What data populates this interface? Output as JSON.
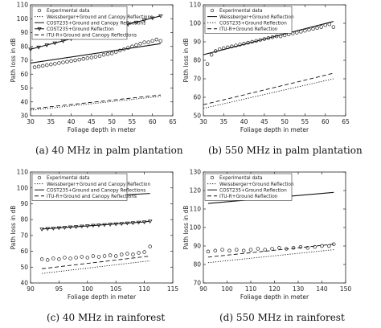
{
  "chart_data": [
    {
      "type": "line",
      "caption": "(a) 40 MHz in palm plantation",
      "xlabel": "Foliage depth in meter",
      "ylabel": "Path loss in dB",
      "xlim": [
        30,
        65
      ],
      "ylim": [
        30,
        110
      ],
      "xticks": [
        30,
        35,
        40,
        45,
        50,
        55,
        60,
        65
      ],
      "yticks": [
        30,
        40,
        50,
        60,
        70,
        80,
        90,
        100,
        110
      ],
      "grid": false,
      "legend_position": "top-left",
      "series": [
        {
          "name": "Experimental data",
          "style": "circles",
          "x": [
            31,
            32,
            33,
            34,
            35,
            36,
            37,
            38,
            39,
            40,
            41,
            42,
            43,
            44,
            45,
            46,
            47,
            48,
            49,
            50,
            51,
            52,
            53,
            54,
            55,
            56,
            57,
            58,
            59,
            60,
            61,
            62
          ],
          "y": [
            65,
            65.5,
            66,
            66.5,
            67,
            67.5,
            68,
            68.5,
            69,
            69.5,
            70,
            70.5,
            71,
            71.5,
            72,
            72.5,
            73,
            74,
            74.5,
            75,
            76,
            77,
            78,
            79,
            80,
            81,
            82,
            83,
            83,
            84,
            85,
            84
          ]
        },
        {
          "name": "Weissberger+Ground and Canopy Reflections",
          "style": "dotted",
          "x": [
            30,
            62
          ],
          "y": [
            34,
            44
          ]
        },
        {
          "name": "COST235+Ground and Canopy Reflections",
          "style": "solid",
          "x": [
            30,
            62
          ],
          "y": [
            68,
            82
          ]
        },
        {
          "name": "COST235+Ground Reflection",
          "style": "solid-triangles",
          "x": [
            30,
            32,
            34,
            36,
            38,
            40,
            42,
            44,
            46,
            48,
            50,
            52,
            54,
            56,
            58,
            60,
            62
          ],
          "y": [
            78,
            79.5,
            81,
            82.5,
            84,
            85.5,
            87,
            88.5,
            90,
            91.5,
            93,
            94.5,
            96,
            97.5,
            99,
            100.5,
            102
          ]
        },
        {
          "name": "ITU-R+Ground and Canopy Reflections",
          "style": "dashed",
          "x": [
            30,
            62
          ],
          "y": [
            35,
            45
          ]
        }
      ]
    },
    {
      "type": "line",
      "caption": "(b) 550 MHz in palm plantation",
      "xlabel": "Foliage depth in meter",
      "ylabel": "Path loss in dB",
      "xlim": [
        30,
        65
      ],
      "ylim": [
        50,
        110
      ],
      "xticks": [
        30,
        35,
        40,
        45,
        50,
        55,
        60,
        65
      ],
      "yticks": [
        50,
        60,
        70,
        80,
        90,
        100,
        110
      ],
      "grid": false,
      "legend_position": "top-left",
      "series": [
        {
          "name": "Experimental data",
          "style": "circles",
          "x": [
            31,
            32,
            33,
            34,
            35,
            36,
            37,
            38,
            39,
            40,
            41,
            42,
            43,
            44,
            45,
            46,
            47,
            48,
            49,
            50,
            51,
            52,
            53,
            54,
            55,
            56,
            57,
            58,
            59,
            60,
            61,
            62
          ],
          "y": [
            78,
            83,
            85,
            86,
            86.5,
            87,
            87.5,
            88,
            88.5,
            89,
            89.5,
            90,
            90.5,
            91,
            91.5,
            92,
            92.5,
            93,
            93,
            93.5,
            94,
            94.5,
            95,
            95.5,
            96,
            96.5,
            97,
            97.5,
            98,
            99,
            99.5,
            98
          ]
        },
        {
          "name": "Weissberger+Ground Reflection",
          "style": "solid",
          "x": [
            30,
            62
          ],
          "y": [
            83,
            101
          ]
        },
        {
          "name": "COST235+Ground Reflection",
          "style": "dotted",
          "x": [
            30,
            62
          ],
          "y": [
            54,
            70
          ]
        },
        {
          "name": "ITU-R+Ground Reflection",
          "style": "dashed",
          "x": [
            30,
            62
          ],
          "y": [
            56,
            73
          ]
        }
      ]
    },
    {
      "type": "line",
      "caption": "(c) 40 MHz in rainforest",
      "xlabel": "Foliage depth in meter",
      "ylabel": "Path loss in dB",
      "xlim": [
        90,
        115
      ],
      "ylim": [
        40,
        110
      ],
      "xticks": [
        90,
        95,
        100,
        105,
        110,
        115
      ],
      "yticks": [
        40,
        50,
        60,
        70,
        80,
        90,
        100,
        110
      ],
      "grid": false,
      "legend_position": "top-left",
      "series": [
        {
          "name": "Experimental data",
          "style": "circles",
          "x": [
            92,
            93,
            94,
            95,
            96,
            97,
            98,
            99,
            100,
            101,
            102,
            103,
            104,
            105,
            106,
            107,
            108,
            109,
            110,
            111
          ],
          "y": [
            55,
            54.5,
            55.5,
            55,
            56,
            55.5,
            56,
            56.5,
            56,
            57,
            56.5,
            57,
            57.5,
            57,
            58,
            58.5,
            58,
            59,
            59.5,
            63
          ]
        },
        {
          "name": "Weissberger+Ground and Canopy Reflection",
          "style": "dotted",
          "x": [
            92,
            111
          ],
          "y": [
            46,
            54
          ]
        },
        {
          "name": "COST235+Ground and Canopy Reflections",
          "style": "solid",
          "x": [
            92,
            111
          ],
          "y": [
            92.5,
            96.5
          ]
        },
        {
          "name": "ITU-R+Ground and Canopy Reflections",
          "style": "dashed",
          "x": [
            92,
            111
          ],
          "y": [
            49,
            57
          ]
        },
        {
          "name": "",
          "style": "solid-triangles",
          "x": [
            92,
            93,
            94,
            95,
            96,
            97,
            98,
            99,
            100,
            101,
            102,
            103,
            104,
            105,
            106,
            107,
            108,
            109,
            110,
            111
          ],
          "y": [
            74,
            74.3,
            74.5,
            74.8,
            75,
            75.3,
            75.5,
            75.8,
            76,
            76.3,
            76.5,
            76.8,
            77,
            77.3,
            77.5,
            77.8,
            78,
            78.3,
            78.5,
            79
          ]
        }
      ]
    },
    {
      "type": "line",
      "caption": "(d) 550 MHz in rainforest",
      "xlabel": "Foliage depth in meter",
      "ylabel": "Path loss in dB",
      "xlim": [
        90,
        150
      ],
      "ylim": [
        70,
        130
      ],
      "xticks": [
        90,
        100,
        110,
        120,
        130,
        140,
        150
      ],
      "yticks": [
        70,
        80,
        90,
        100,
        110,
        120,
        130
      ],
      "grid": false,
      "legend_position": "top-left",
      "series": [
        {
          "name": "Experimental data",
          "style": "circles",
          "x": [
            92,
            95,
            98,
            101,
            104,
            107,
            110,
            113,
            116,
            119,
            122,
            125,
            128,
            131,
            134,
            137,
            140,
            143,
            145
          ],
          "y": [
            87,
            87.5,
            88,
            87.5,
            88,
            87.5,
            88,
            88.5,
            88,
            88.5,
            89,
            88.5,
            89,
            89.5,
            89,
            89.5,
            90,
            90,
            91
          ]
        },
        {
          "name": "Weissberger+Ground Reflection",
          "style": "dotted",
          "x": [
            92,
            145
          ],
          "y": [
            81,
            88
          ]
        },
        {
          "name": "COST235+Ground Reflection",
          "style": "solid",
          "x": [
            92,
            145
          ],
          "y": [
            113,
            119
          ]
        },
        {
          "name": "ITU-R+Ground Reflection",
          "style": "dashed",
          "x": [
            92,
            145
          ],
          "y": [
            84,
            91
          ]
        }
      ]
    }
  ]
}
